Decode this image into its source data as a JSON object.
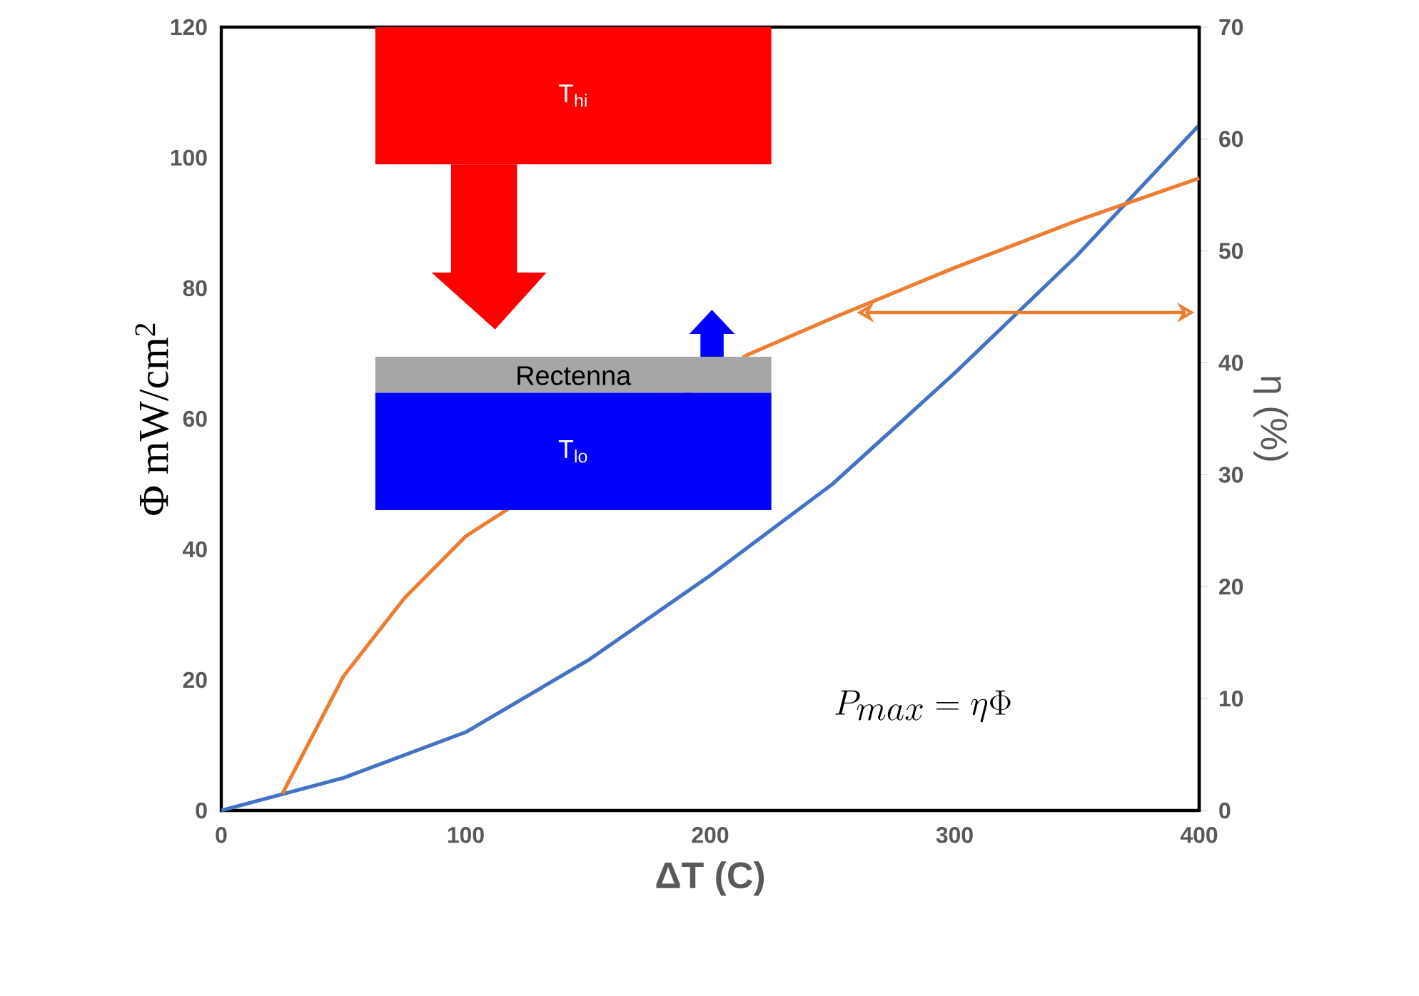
{
  "chart_data": {
    "type": "line",
    "xlabel": "ΔT (C)",
    "ylabel": "Φ  mW/cm$^{2}$",
    "y2label": "η (%)",
    "xlim": [
      0,
      400
    ],
    "xticks": [
      0,
      100,
      200,
      300,
      400
    ],
    "ylim": [
      0,
      120
    ],
    "yticks": [
      0,
      20,
      40,
      60,
      80,
      100,
      120
    ],
    "y2lim": [
      0,
      70
    ],
    "y2ticks": [
      0,
      10,
      20,
      30,
      40,
      50,
      60,
      70
    ],
    "series": [
      {
        "color": "#4472c4",
        "x": [
          0,
          50,
          100,
          150,
          200,
          250,
          300,
          350,
          400
        ],
        "values": [
          0,
          5,
          12,
          23,
          36,
          50,
          67,
          85,
          105
        ]
      },
      {
        "color": "#ed7d31",
        "axis": "y2",
        "x": [
          25,
          50,
          75,
          100,
          215,
          250,
          300,
          350,
          400
        ],
        "values": [
          1.5,
          12,
          19,
          24.5,
          40.7,
          44,
          48.5,
          52.7,
          56.5
        ]
      }
    ],
    "annotations": [
      "T$_{hi}$",
      "Rectenna",
      "T$_{lo}$",
      "P_{max} = \\eta\\Phi"
    ]
  }
}
